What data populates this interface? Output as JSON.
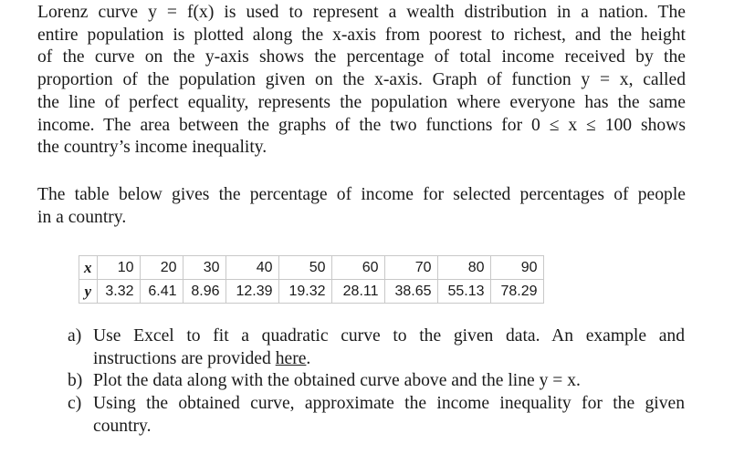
{
  "intro_lines": [
    "Lorenz curve y = f(x) is used to represent a wealth distribution in a nation. The",
    "entire population is plotted along the x-axis from poorest to richest, and the height",
    "of the curve on the y-axis shows the percentage of total income received by the",
    "proportion of the population given on the x-axis. Graph of function y = x, called",
    "the line of perfect equality, represents the population where everyone has the same",
    "income. The area between the graphs of the two functions for 0 ≤ x ≤ 100 shows",
    "the country’s income inequality."
  ],
  "table_intro_lines": [
    "The table below gives the percentage of income for selected percentages of people",
    "in a country."
  ],
  "table": {
    "x_label": "x",
    "y_label": "y",
    "x_values": [
      "10",
      "20",
      "30",
      "40",
      "50",
      "60",
      "70",
      "80",
      "90"
    ],
    "y_values": [
      "3.32",
      "6.41",
      "8.96",
      "12.39",
      "19.32",
      "28.11",
      "38.65",
      "55.13",
      "78.29"
    ]
  },
  "tasks": {
    "a": {
      "label": "a)",
      "line1": "Use Excel to fit a quadratic curve to the given data. An example and",
      "line2_before": "instructions are provided ",
      "link": "here",
      "line2_after": "."
    },
    "b": {
      "label": "b)",
      "text": "Plot the data along with the obtained curve above and the line y = x."
    },
    "c": {
      "label": "c)",
      "line1": "Using the obtained curve, approximate the income inequality for the given",
      "line2": "country."
    }
  }
}
